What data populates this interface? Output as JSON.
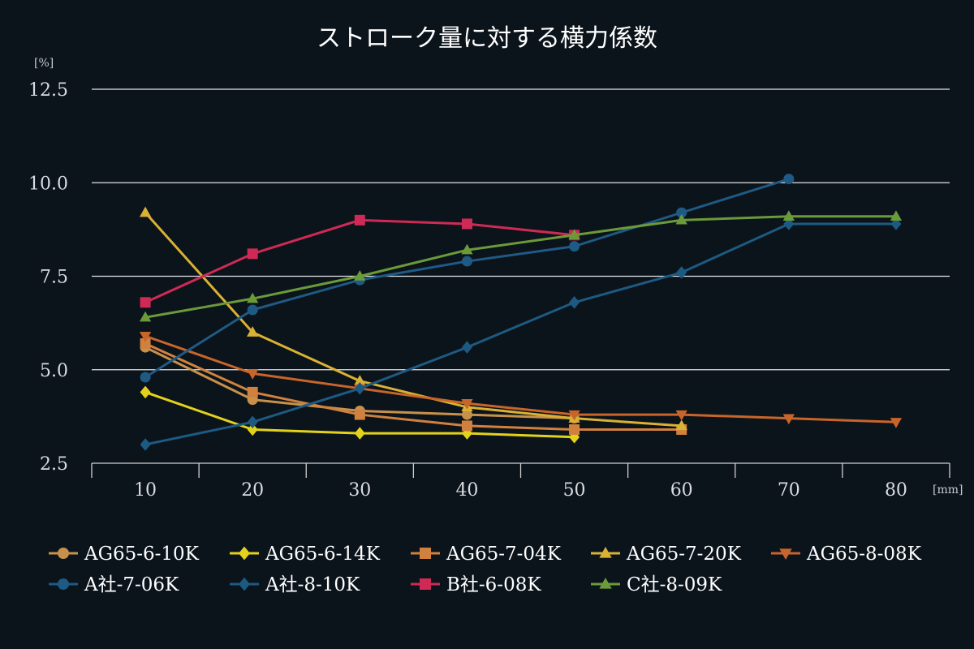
{
  "chart_data": {
    "type": "line",
    "title": "ストローク量に対する横力係数",
    "ylabel_unit": "[%]",
    "xlabel_unit": "[mm]",
    "ylim": [
      2.5,
      12.5
    ],
    "yticks": [
      "2.5",
      "5.0",
      "7.5",
      "10.0",
      "12.5"
    ],
    "ytick_values": [
      2.5,
      5.0,
      7.5,
      10.0,
      12.5
    ],
    "xticks": [
      "10",
      "20",
      "30",
      "40",
      "50",
      "60",
      "70",
      "80"
    ],
    "xtick_values": [
      10,
      20,
      30,
      40,
      50,
      60,
      70,
      80
    ],
    "grid": "horizontal",
    "legend_position": "bottom",
    "series": [
      {
        "name": "AG65-6-10K",
        "color": "#c8914b",
        "marker": "circle",
        "x": [
          10,
          20,
          30,
          40,
          50
        ],
        "y": [
          5.6,
          4.2,
          3.9,
          3.8,
          3.7
        ]
      },
      {
        "name": "AG65-6-14K",
        "color": "#e3d21c",
        "marker": "diamond",
        "x": [
          10,
          20,
          30,
          40,
          50
        ],
        "y": [
          4.4,
          3.4,
          3.3,
          3.3,
          3.2
        ]
      },
      {
        "name": "AG65-7-04K",
        "color": "#d0813e",
        "marker": "square",
        "x": [
          10,
          20,
          30,
          40,
          50,
          60
        ],
        "y": [
          5.7,
          4.4,
          3.8,
          3.5,
          3.4,
          3.4
        ]
      },
      {
        "name": "AG65-7-20K",
        "color": "#d9b133",
        "marker": "triangle-up",
        "x": [
          10,
          20,
          30,
          40,
          50,
          60
        ],
        "y": [
          9.2,
          6.0,
          4.7,
          4.0,
          3.7,
          3.5
        ]
      },
      {
        "name": "AG65-8-08K",
        "color": "#c8652a",
        "marker": "triangle-down",
        "x": [
          10,
          20,
          30,
          40,
          50,
          60,
          70,
          80
        ],
        "y": [
          5.9,
          4.9,
          4.5,
          4.1,
          3.8,
          3.8,
          3.7,
          3.6
        ]
      },
      {
        "name": "A社-7-06K",
        "color": "#1f5a84",
        "marker": "circle",
        "x": [
          10,
          20,
          30,
          40,
          50,
          60,
          70
        ],
        "y": [
          4.8,
          6.6,
          7.4,
          7.9,
          8.3,
          9.2,
          10.1
        ]
      },
      {
        "name": "A社-8-10K",
        "color": "#1d5a82",
        "marker": "diamond",
        "x": [
          10,
          20,
          30,
          40,
          50,
          60,
          70,
          80
        ],
        "y": [
          3.0,
          3.6,
          4.5,
          5.6,
          6.8,
          7.6,
          8.9,
          8.9
        ]
      },
      {
        "name": "B社-6-08K",
        "color": "#cf2a55",
        "marker": "square",
        "x": [
          10,
          20,
          30,
          40,
          50
        ],
        "y": [
          6.8,
          8.1,
          9.0,
          8.9,
          8.6
        ]
      },
      {
        "name": "C社-8-09K",
        "color": "#6b9a3a",
        "marker": "triangle-up",
        "x": [
          10,
          20,
          30,
          40,
          50,
          60,
          70,
          80
        ],
        "y": [
          6.4,
          6.9,
          7.5,
          8.2,
          8.6,
          9.0,
          9.1,
          9.1
        ]
      }
    ]
  }
}
